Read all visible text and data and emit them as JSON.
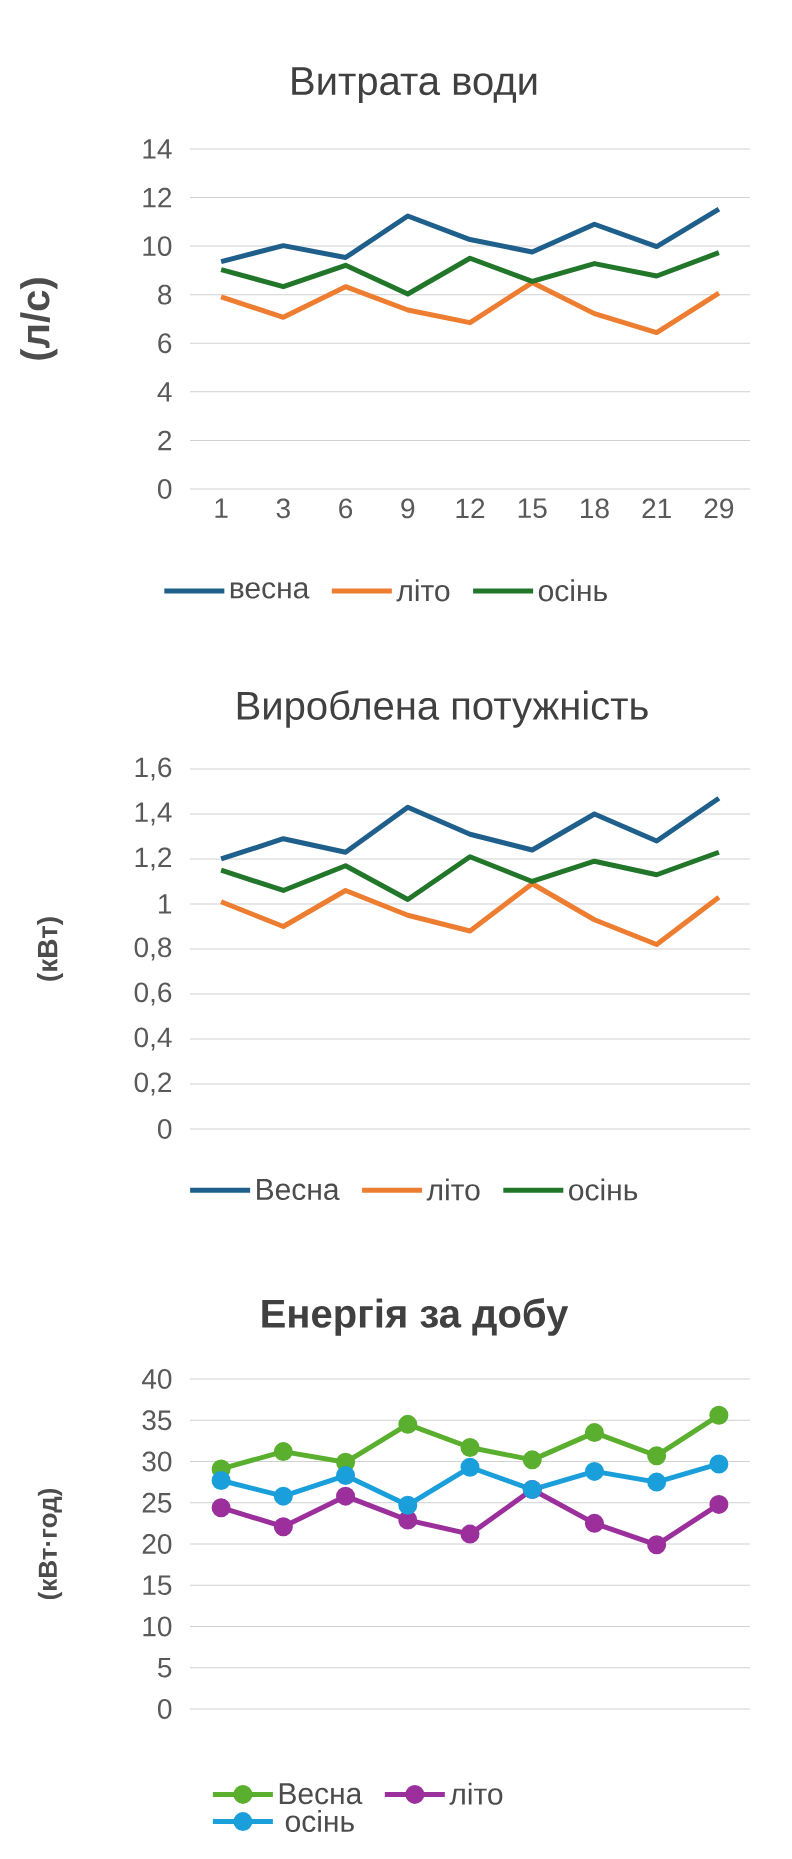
{
  "chart_data": [
    {
      "type": "line",
      "title": "Витрата води",
      "ylabel": "(л/с)",
      "categories": [
        "1",
        "3",
        "6",
        "9",
        "12",
        "15",
        "18",
        "21",
        "29"
      ],
      "series": [
        {
          "name": "весна",
          "color": "#1f5f8b",
          "values": [
            9.36,
            10.02,
            9.53,
            11.24,
            10.27,
            9.76,
            10.9,
            9.98,
            11.52
          ]
        },
        {
          "name": "літо",
          "color": "#ed7d31",
          "values": [
            7.91,
            7.07,
            8.33,
            7.37,
            6.85,
            8.5,
            7.22,
            6.44,
            8.06
          ]
        },
        {
          "name": "осінь",
          "color": "#22762a",
          "values": [
            9.03,
            8.33,
            9.21,
            8.03,
            9.5,
            8.55,
            9.28,
            8.77,
            9.73
          ]
        }
      ],
      "ylim": [
        0,
        14
      ],
      "yticks": [
        0,
        2,
        4,
        6,
        8,
        10,
        12,
        14
      ],
      "grid": "y",
      "legend": "bottom"
    },
    {
      "type": "line",
      "title": "Вироблена потужність",
      "ylabel": "(кВт)",
      "categories": [
        null,
        null,
        null,
        null,
        null,
        null,
        null,
        null,
        null
      ],
      "series": [
        {
          "name": "Весна",
          "color": "#1f5f8b",
          "values": [
            1.2,
            1.29,
            1.23,
            1.43,
            1.31,
            1.24,
            1.4,
            1.28,
            1.47
          ]
        },
        {
          "name": "літо",
          "color": "#ed7d31",
          "values": [
            1.01,
            0.9,
            1.06,
            0.95,
            0.88,
            1.09,
            0.93,
            0.82,
            1.03
          ]
        },
        {
          "name": "осінь",
          "color": "#22762a",
          "values": [
            1.15,
            1.06,
            1.17,
            1.02,
            1.21,
            1.1,
            1.19,
            1.13,
            1.23
          ]
        }
      ],
      "ylim": [
        0,
        1.6
      ],
      "yticks": [
        {
          "value": 0,
          "label": "0"
        },
        {
          "value": 0.2,
          "label": "0,2"
        },
        {
          "value": 0.4,
          "label": "0,4"
        },
        {
          "value": 0.6,
          "label": "0,6"
        },
        {
          "value": 0.8,
          "label": "0,8"
        },
        {
          "value": 1,
          "label": "1"
        },
        {
          "value": 1.2,
          "label": "1,2"
        },
        {
          "value": 1.4,
          "label": "1,4"
        },
        {
          "value": 1.6,
          "label": "1,6"
        }
      ],
      "grid": "y",
      "legend": "bottom",
      "tick_labels": "y"
    },
    {
      "type": "line",
      "title": "Енергія за добу",
      "ylabel": "(кВт·год)",
      "categories": [
        null,
        null,
        null,
        null,
        null,
        null,
        null,
        null,
        null
      ],
      "series": [
        {
          "name": "Весна",
          "color": "#5aaf2e",
          "values": [
            29.1,
            31.2,
            29.9,
            34.5,
            31.7,
            30.2,
            33.5,
            30.7,
            35.6
          ]
        },
        {
          "name": "літо",
          "color": "#9b2f9b",
          "values": [
            24.4,
            22.1,
            25.8,
            22.9,
            21.2,
            26.6,
            22.5,
            19.9,
            24.8
          ]
        },
        {
          "name": "осінь",
          "color": "#1a9fdb",
          "values": [
            27.7,
            25.8,
            28.3,
            24.7,
            29.3,
            26.6,
            28.8,
            27.5,
            29.7
          ]
        }
      ],
      "ylim": [
        0,
        40
      ],
      "yticks": [
        0,
        5,
        10,
        15,
        20,
        25,
        30,
        35,
        40
      ],
      "grid": "y",
      "legend": "bottom",
      "tick_labels": "y",
      "marker": "circle"
    }
  ]
}
